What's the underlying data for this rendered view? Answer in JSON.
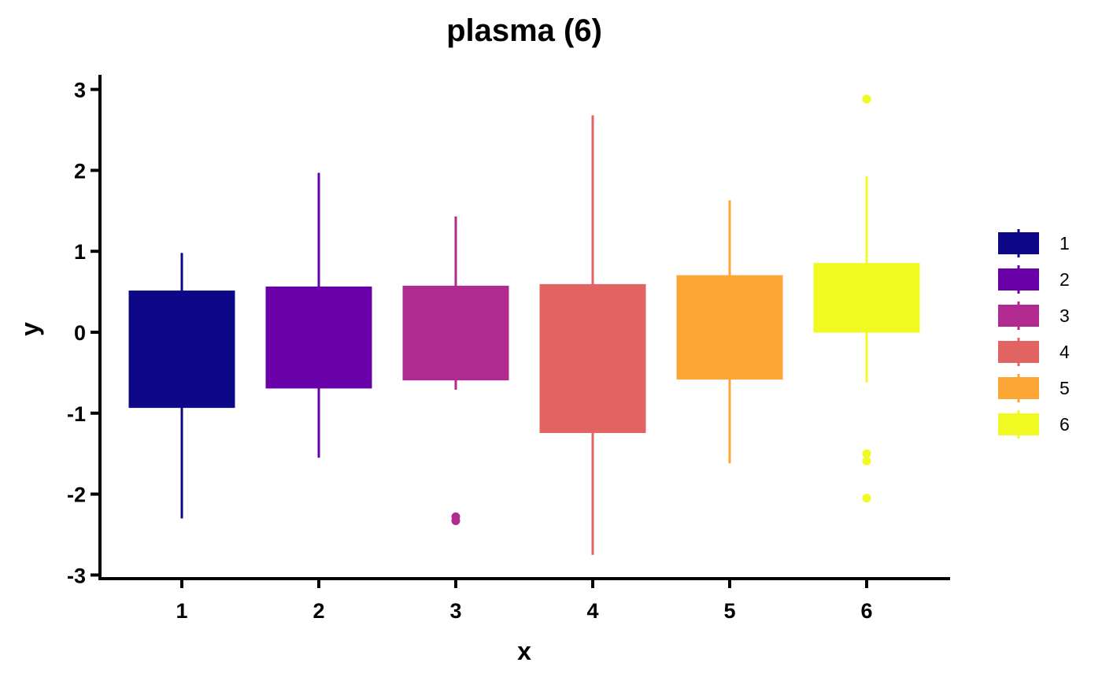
{
  "chart_data": {
    "type": "box",
    "title": "plasma (6)",
    "xlabel": "x",
    "ylabel": "y",
    "ylim": [
      -3.1,
      3.2
    ],
    "yticks": [
      "-3",
      "-2",
      "-1",
      "0",
      "1",
      "2",
      "3"
    ],
    "categories": [
      "1",
      "2",
      "3",
      "4",
      "5",
      "6"
    ],
    "legend_position": "right",
    "series": [
      {
        "name": "1",
        "color": "#0D0887",
        "whisker_low": -2.3,
        "q1": -0.93,
        "q3": 0.51,
        "whisker_high": 0.98,
        "outliers": []
      },
      {
        "name": "2",
        "color": "#6A00A8",
        "whisker_low": -1.55,
        "q1": -0.69,
        "q3": 0.56,
        "whisker_high": 1.97,
        "outliers": []
      },
      {
        "name": "3",
        "color": "#B12A90",
        "whisker_low": -0.71,
        "q1": -0.59,
        "q3": 0.57,
        "whisker_high": 1.43,
        "outliers": [
          -2.28,
          -2.33
        ]
      },
      {
        "name": "4",
        "color": "#E16462",
        "whisker_low": -2.75,
        "q1": -1.24,
        "q3": 0.59,
        "whisker_high": 2.68,
        "outliers": []
      },
      {
        "name": "5",
        "color": "#FCA636",
        "whisker_low": -1.62,
        "q1": -0.58,
        "q3": 0.7,
        "whisker_high": 1.63,
        "outliers": []
      },
      {
        "name": "6",
        "color": "#F0F921",
        "whisker_low": -0.62,
        "q1": 0.0,
        "q3": 0.85,
        "whisker_high": 1.93,
        "outliers": [
          2.88,
          -1.5,
          -1.59,
          -2.05
        ]
      }
    ]
  }
}
